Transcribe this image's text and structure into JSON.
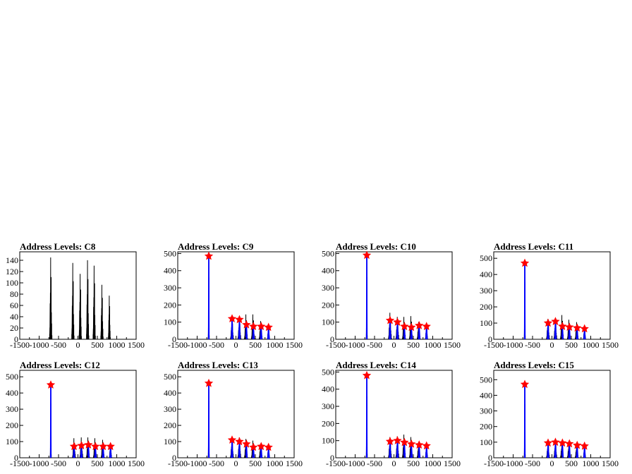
{
  "colors": {
    "histogram": "#000000",
    "fit": "#0000ff",
    "marker": "#ff0000",
    "axis": "#000000"
  },
  "chart_data": [
    {
      "type": "histogram",
      "title": "Address Levels: C8",
      "xlim": [
        -1500,
        1500
      ],
      "ylim": [
        0,
        155
      ],
      "xticks": [
        -1500,
        -1000,
        -500,
        0,
        500,
        1000,
        1500
      ],
      "yticks": [
        0,
        20,
        40,
        60,
        80,
        100,
        120,
        140
      ],
      "spikes": [
        {
          "x": -700,
          "h": 150,
          "w": 30
        },
        {
          "x": -130,
          "h": 140,
          "w": 30
        },
        {
          "x": 60,
          "h": 120,
          "w": 30
        },
        {
          "x": 250,
          "h": 145,
          "w": 30
        },
        {
          "x": 420,
          "h": 135,
          "w": 30
        },
        {
          "x": 620,
          "h": 100,
          "w": 30
        },
        {
          "x": 810,
          "h": 80,
          "w": 25
        }
      ],
      "fit_peaks": [],
      "markers": []
    },
    {
      "type": "histogram",
      "title": "Address Levels: C9",
      "xlim": [
        -1500,
        1500
      ],
      "ylim": [
        0,
        510
      ],
      "xticks": [
        -1500,
        -1000,
        -500,
        0,
        500,
        1000,
        1500
      ],
      "yticks": [
        0,
        100,
        200,
        300,
        400,
        500
      ],
      "spikes": [
        {
          "x": -700,
          "h": 490,
          "w": 12
        },
        {
          "x": -100,
          "h": 125,
          "w": 40
        },
        {
          "x": 90,
          "h": 125,
          "w": 40
        },
        {
          "x": 260,
          "h": 150,
          "w": 40
        },
        {
          "x": 440,
          "h": 150,
          "w": 40
        },
        {
          "x": 640,
          "h": 110,
          "w": 40
        },
        {
          "x": 840,
          "h": 80,
          "w": 30
        }
      ],
      "fit_peaks": [
        {
          "x": -700,
          "h": 480
        },
        {
          "x": -100,
          "h": 120
        },
        {
          "x": 90,
          "h": 115
        },
        {
          "x": 270,
          "h": 85
        },
        {
          "x": 450,
          "h": 75
        },
        {
          "x": 650,
          "h": 75
        },
        {
          "x": 840,
          "h": 70
        }
      ],
      "markers": [
        {
          "x": -700,
          "y": 485
        },
        {
          "x": -100,
          "y": 120
        },
        {
          "x": 90,
          "y": 115
        },
        {
          "x": 270,
          "y": 85
        },
        {
          "x": 450,
          "y": 75
        },
        {
          "x": 650,
          "y": 75
        },
        {
          "x": 840,
          "y": 70
        }
      ]
    },
    {
      "type": "histogram",
      "title": "Address Levels: C10",
      "xlim": [
        -1500,
        1500
      ],
      "ylim": [
        0,
        510
      ],
      "xticks": [
        -1500,
        -1000,
        -500,
        0,
        500,
        1000,
        1500
      ],
      "yticks": [
        0,
        100,
        200,
        300,
        400,
        500
      ],
      "spikes": [
        {
          "x": -700,
          "h": 495,
          "w": 12
        },
        {
          "x": -100,
          "h": 160,
          "w": 40
        },
        {
          "x": 90,
          "h": 135,
          "w": 40
        },
        {
          "x": 260,
          "h": 135,
          "w": 40
        },
        {
          "x": 440,
          "h": 140,
          "w": 40
        },
        {
          "x": 640,
          "h": 105,
          "w": 40
        },
        {
          "x": 840,
          "h": 90,
          "w": 30
        }
      ],
      "fit_peaks": [
        {
          "x": -700,
          "h": 485
        },
        {
          "x": -100,
          "h": 110
        },
        {
          "x": 90,
          "h": 100
        },
        {
          "x": 270,
          "h": 75
        },
        {
          "x": 450,
          "h": 70
        },
        {
          "x": 650,
          "h": 80
        },
        {
          "x": 840,
          "h": 75
        }
      ],
      "markers": [
        {
          "x": -700,
          "y": 490
        },
        {
          "x": -100,
          "y": 110
        },
        {
          "x": 90,
          "y": 100
        },
        {
          "x": 270,
          "y": 75
        },
        {
          "x": 450,
          "y": 70
        },
        {
          "x": 650,
          "y": 80
        },
        {
          "x": 840,
          "y": 75
        }
      ]
    },
    {
      "type": "histogram",
      "title": "Address Levels: C11",
      "xlim": [
        -1500,
        1500
      ],
      "ylim": [
        0,
        540
      ],
      "xticks": [
        -1500,
        -1000,
        -500,
        0,
        500,
        1000,
        1500
      ],
      "yticks": [
        0,
        100,
        200,
        300,
        400,
        500
      ],
      "spikes": [
        {
          "x": -700,
          "h": 480,
          "w": 12
        },
        {
          "x": -100,
          "h": 130,
          "w": 40
        },
        {
          "x": 90,
          "h": 125,
          "w": 40
        },
        {
          "x": 260,
          "h": 155,
          "w": 40
        },
        {
          "x": 440,
          "h": 125,
          "w": 40
        },
        {
          "x": 640,
          "h": 110,
          "w": 40
        },
        {
          "x": 840,
          "h": 85,
          "w": 30
        }
      ],
      "fit_peaks": [
        {
          "x": -700,
          "h": 470
        },
        {
          "x": -100,
          "h": 100
        },
        {
          "x": 90,
          "h": 110
        },
        {
          "x": 270,
          "h": 80
        },
        {
          "x": 450,
          "h": 75
        },
        {
          "x": 650,
          "h": 70
        },
        {
          "x": 840,
          "h": 65
        }
      ],
      "markers": [
        {
          "x": -700,
          "y": 470
        },
        {
          "x": -100,
          "y": 100
        },
        {
          "x": 90,
          "y": 110
        },
        {
          "x": 270,
          "y": 80
        },
        {
          "x": 450,
          "y": 75
        },
        {
          "x": 650,
          "y": 70
        },
        {
          "x": 840,
          "y": 65
        }
      ]
    },
    {
      "type": "histogram",
      "title": "Address Levels: C12",
      "xlim": [
        -1500,
        1500
      ],
      "ylim": [
        0,
        540
      ],
      "xticks": [
        -1500,
        -1000,
        -500,
        0,
        500,
        1000,
        1500
      ],
      "yticks": [
        0,
        100,
        200,
        300,
        400,
        500
      ],
      "spikes": [
        {
          "x": -700,
          "h": 460,
          "w": 12
        },
        {
          "x": -100,
          "h": 125,
          "w": 40
        },
        {
          "x": 90,
          "h": 130,
          "w": 40
        },
        {
          "x": 260,
          "h": 130,
          "w": 40
        },
        {
          "x": 440,
          "h": 125,
          "w": 40
        },
        {
          "x": 640,
          "h": 115,
          "w": 40
        },
        {
          "x": 840,
          "h": 95,
          "w": 30
        }
      ],
      "fit_peaks": [
        {
          "x": -700,
          "h": 450
        },
        {
          "x": -100,
          "h": 70
        },
        {
          "x": 90,
          "h": 75
        },
        {
          "x": 270,
          "h": 80
        },
        {
          "x": 450,
          "h": 70
        },
        {
          "x": 650,
          "h": 70
        },
        {
          "x": 840,
          "h": 70
        }
      ],
      "markers": [
        {
          "x": -700,
          "y": 450
        },
        {
          "x": -100,
          "y": 70
        },
        {
          "x": 90,
          "y": 75
        },
        {
          "x": 270,
          "y": 80
        },
        {
          "x": 450,
          "y": 70
        },
        {
          "x": 650,
          "y": 70
        },
        {
          "x": 840,
          "y": 70
        }
      ]
    },
    {
      "type": "histogram",
      "title": "Address Levels: C13",
      "xlim": [
        -1500,
        1500
      ],
      "ylim": [
        0,
        540
      ],
      "xticks": [
        -1500,
        -1000,
        -500,
        0,
        500,
        1000,
        1500
      ],
      "yticks": [
        0,
        100,
        200,
        300,
        400,
        500
      ],
      "spikes": [
        {
          "x": -700,
          "h": 480,
          "w": 12
        },
        {
          "x": -100,
          "h": 125,
          "w": 40
        },
        {
          "x": 90,
          "h": 130,
          "w": 40
        },
        {
          "x": 260,
          "h": 120,
          "w": 40
        },
        {
          "x": 440,
          "h": 110,
          "w": 40
        },
        {
          "x": 640,
          "h": 90,
          "w": 40
        },
        {
          "x": 840,
          "h": 80,
          "w": 30
        }
      ],
      "fit_peaks": [
        {
          "x": -700,
          "h": 460
        },
        {
          "x": -100,
          "h": 110
        },
        {
          "x": 90,
          "h": 100
        },
        {
          "x": 270,
          "h": 85
        },
        {
          "x": 450,
          "h": 65
        },
        {
          "x": 650,
          "h": 70
        },
        {
          "x": 840,
          "h": 65
        }
      ],
      "markers": [
        {
          "x": -700,
          "y": 460
        },
        {
          "x": -100,
          "y": 110
        },
        {
          "x": 90,
          "y": 100
        },
        {
          "x": 270,
          "y": 85
        },
        {
          "x": 450,
          "y": 65
        },
        {
          "x": 650,
          "y": 70
        },
        {
          "x": 840,
          "y": 65
        }
      ]
    },
    {
      "type": "histogram",
      "title": "Address Levels: C14",
      "xlim": [
        -1500,
        1500
      ],
      "ylim": [
        0,
        510
      ],
      "xticks": [
        -1500,
        -1000,
        -500,
        0,
        500,
        1000,
        1500
      ],
      "yticks": [
        0,
        100,
        200,
        300,
        400,
        500
      ],
      "spikes": [
        {
          "x": -700,
          "h": 490,
          "w": 12
        },
        {
          "x": -100,
          "h": 125,
          "w": 40
        },
        {
          "x": 90,
          "h": 130,
          "w": 40
        },
        {
          "x": 260,
          "h": 140,
          "w": 40
        },
        {
          "x": 440,
          "h": 125,
          "w": 40
        },
        {
          "x": 640,
          "h": 95,
          "w": 40
        },
        {
          "x": 840,
          "h": 80,
          "w": 30
        }
      ],
      "fit_peaks": [
        {
          "x": -700,
          "h": 480
        },
        {
          "x": -100,
          "h": 95
        },
        {
          "x": 90,
          "h": 100
        },
        {
          "x": 270,
          "h": 90
        },
        {
          "x": 450,
          "h": 80
        },
        {
          "x": 650,
          "h": 75
        },
        {
          "x": 840,
          "h": 70
        }
      ],
      "markers": [
        {
          "x": -700,
          "y": 480
        },
        {
          "x": -100,
          "y": 95
        },
        {
          "x": 90,
          "y": 100
        },
        {
          "x": 270,
          "y": 90
        },
        {
          "x": 450,
          "y": 80
        },
        {
          "x": 650,
          "y": 75
        },
        {
          "x": 840,
          "y": 70
        }
      ]
    },
    {
      "type": "histogram",
      "title": "Address Levels: C15",
      "xlim": [
        -1500,
        1500
      ],
      "ylim": [
        0,
        560
      ],
      "xticks": [
        -1500,
        -1000,
        -500,
        0,
        500,
        1000,
        1500
      ],
      "yticks": [
        0,
        100,
        200,
        300,
        400,
        500
      ],
      "spikes": [
        {
          "x": -700,
          "h": 470,
          "w": 12
        },
        {
          "x": -100,
          "h": 105,
          "w": 40
        },
        {
          "x": 90,
          "h": 110,
          "w": 40
        },
        {
          "x": 260,
          "h": 105,
          "w": 40
        },
        {
          "x": 440,
          "h": 100,
          "w": 40
        },
        {
          "x": 640,
          "h": 90,
          "w": 40
        },
        {
          "x": 840,
          "h": 80,
          "w": 30
        }
      ],
      "fit_peaks": [
        {
          "x": -700,
          "h": 460
        },
        {
          "x": -100,
          "h": 95
        },
        {
          "x": 90,
          "h": 100
        },
        {
          "x": 270,
          "h": 95
        },
        {
          "x": 450,
          "h": 90
        },
        {
          "x": 650,
          "h": 80
        },
        {
          "x": 840,
          "h": 75
        }
      ],
      "markers": [
        {
          "x": -700,
          "y": 470
        },
        {
          "x": -100,
          "y": 95
        },
        {
          "x": 90,
          "y": 100
        },
        {
          "x": 270,
          "y": 95
        },
        {
          "x": 450,
          "y": 90
        },
        {
          "x": 650,
          "y": 80
        },
        {
          "x": 840,
          "y": 75
        }
      ]
    }
  ]
}
